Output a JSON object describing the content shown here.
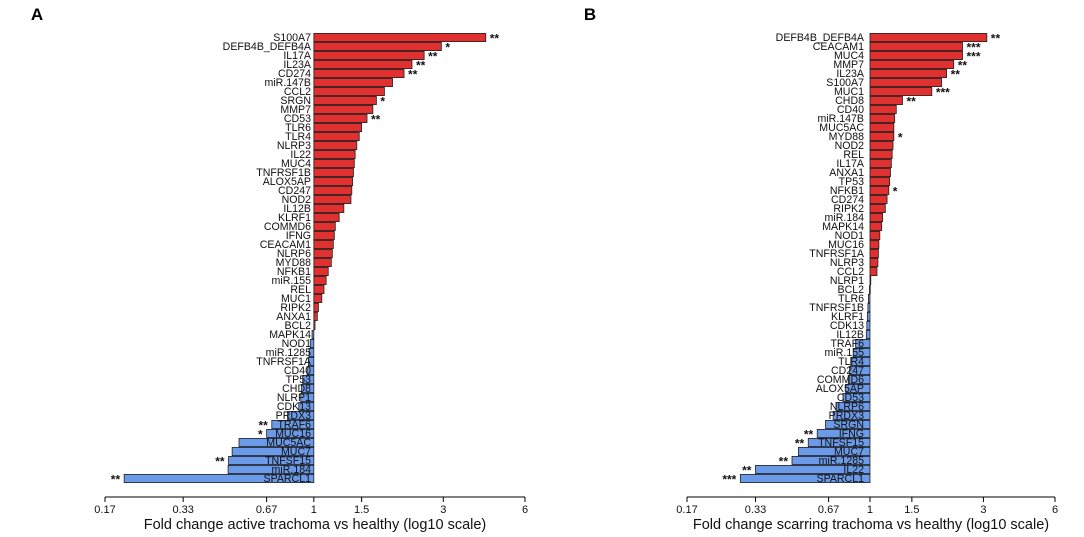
{
  "colors": {
    "up": "#e03030",
    "down": "#6b9ae8",
    "outline": "#222222"
  },
  "chart_data": [
    {
      "type": "bar",
      "orientation": "horizontal",
      "panel_label": "A",
      "xlabel": "Fold change active trachoma vs healthy (log10 scale)",
      "xscale": "log10",
      "xlim": [
        0.17,
        6
      ],
      "xticks": [
        "0.17",
        "0.33",
        "0.67",
        "1",
        "1.5",
        "3",
        "6"
      ],
      "bars": [
        {
          "label": "S100A7",
          "value": 4.3,
          "sig": "**"
        },
        {
          "label": "DEFB4B_DEFB4A",
          "value": 2.95,
          "sig": "*"
        },
        {
          "label": "IL17A",
          "value": 2.55,
          "sig": "**"
        },
        {
          "label": "IL23A",
          "value": 2.3,
          "sig": "**"
        },
        {
          "label": "CD274",
          "value": 2.15,
          "sig": "**"
        },
        {
          "label": "miR.147B",
          "value": 1.95,
          "sig": ""
        },
        {
          "label": "CCL2",
          "value": 1.82,
          "sig": ""
        },
        {
          "label": "SRGN",
          "value": 1.7,
          "sig": "*"
        },
        {
          "label": "MMP7",
          "value": 1.65,
          "sig": ""
        },
        {
          "label": "CD53",
          "value": 1.57,
          "sig": "**"
        },
        {
          "label": "TLR6",
          "value": 1.5,
          "sig": ""
        },
        {
          "label": "TLR4",
          "value": 1.47,
          "sig": ""
        },
        {
          "label": "NLRP3",
          "value": 1.44,
          "sig": ""
        },
        {
          "label": "IL22",
          "value": 1.42,
          "sig": ""
        },
        {
          "label": "MUC4",
          "value": 1.41,
          "sig": ""
        },
        {
          "label": "TNFRSF1B",
          "value": 1.4,
          "sig": ""
        },
        {
          "label": "ALOX5AP",
          "value": 1.39,
          "sig": ""
        },
        {
          "label": "CD247",
          "value": 1.38,
          "sig": ""
        },
        {
          "label": "NOD2",
          "value": 1.37,
          "sig": ""
        },
        {
          "label": "IL12B",
          "value": 1.29,
          "sig": ""
        },
        {
          "label": "KLRF1",
          "value": 1.24,
          "sig": ""
        },
        {
          "label": "COMMD6",
          "value": 1.2,
          "sig": ""
        },
        {
          "label": "IFNG",
          "value": 1.19,
          "sig": ""
        },
        {
          "label": "CEACAM1",
          "value": 1.18,
          "sig": ""
        },
        {
          "label": "NLRP6",
          "value": 1.17,
          "sig": ""
        },
        {
          "label": "MYD88",
          "value": 1.16,
          "sig": ""
        },
        {
          "label": "NFKB1",
          "value": 1.13,
          "sig": ""
        },
        {
          "label": "miR.155",
          "value": 1.11,
          "sig": ""
        },
        {
          "label": "REL",
          "value": 1.09,
          "sig": ""
        },
        {
          "label": "MUC1",
          "value": 1.07,
          "sig": ""
        },
        {
          "label": "RIPK2",
          "value": 1.04,
          "sig": ""
        },
        {
          "label": "ANXA1",
          "value": 1.03,
          "sig": ""
        },
        {
          "label": "BCL2",
          "value": 1.01,
          "sig": ""
        },
        {
          "label": "MAPK14",
          "value": 0.985,
          "sig": ""
        },
        {
          "label": "NOD1",
          "value": 0.97,
          "sig": ""
        },
        {
          "label": "miR.1285",
          "value": 0.96,
          "sig": ""
        },
        {
          "label": "TNFRSF1A",
          "value": 0.955,
          "sig": ""
        },
        {
          "label": "CD40",
          "value": 0.945,
          "sig": ""
        },
        {
          "label": "TP53",
          "value": 0.91,
          "sig": ""
        },
        {
          "label": "CHD8",
          "value": 0.9,
          "sig": ""
        },
        {
          "label": "NLRP1",
          "value": 0.895,
          "sig": ""
        },
        {
          "label": "CDK13",
          "value": 0.88,
          "sig": ""
        },
        {
          "label": "PRDX3",
          "value": 0.8,
          "sig": ""
        },
        {
          "label": "TRAF6",
          "value": 0.7,
          "sig": "**"
        },
        {
          "label": "MUC16",
          "value": 0.67,
          "sig": "*"
        },
        {
          "label": "MUC5AC",
          "value": 0.53,
          "sig": ""
        },
        {
          "label": "MUC7",
          "value": 0.5,
          "sig": ""
        },
        {
          "label": "TNFSF15",
          "value": 0.485,
          "sig": "**"
        },
        {
          "label": "miR.184",
          "value": 0.483,
          "sig": ""
        },
        {
          "label": "SPARCL1",
          "value": 0.2,
          "sig": "**"
        }
      ]
    },
    {
      "type": "bar",
      "orientation": "horizontal",
      "panel_label": "B",
      "xlabel": "Fold change scarring trachoma vs healthy (log10 scale)",
      "xscale": "log10",
      "xlim": [
        0.17,
        6
      ],
      "xticks": [
        "0.17",
        "0.33",
        "0.67",
        "1",
        "1.5",
        "3",
        "6"
      ],
      "bars": [
        {
          "label": "DEFB4B_DEFB4A",
          "value": 3.1,
          "sig": "**"
        },
        {
          "label": "CEACAM1",
          "value": 2.45,
          "sig": "***"
        },
        {
          "label": "MUC4",
          "value": 2.45,
          "sig": "***"
        },
        {
          "label": "MMP7",
          "value": 2.25,
          "sig": "**"
        },
        {
          "label": "IL23A",
          "value": 2.1,
          "sig": "**"
        },
        {
          "label": "S100A7",
          "value": 2.0,
          "sig": ""
        },
        {
          "label": "MUC1",
          "value": 1.82,
          "sig": "***"
        },
        {
          "label": "CHD8",
          "value": 1.37,
          "sig": "**"
        },
        {
          "label": "CD40",
          "value": 1.29,
          "sig": ""
        },
        {
          "label": "miR.147B",
          "value": 1.27,
          "sig": ""
        },
        {
          "label": "MUC5AC",
          "value": 1.26,
          "sig": ""
        },
        {
          "label": "MYD88",
          "value": 1.26,
          "sig": "*"
        },
        {
          "label": "NOD2",
          "value": 1.25,
          "sig": ""
        },
        {
          "label": "REL",
          "value": 1.24,
          "sig": ""
        },
        {
          "label": "IL17A",
          "value": 1.23,
          "sig": ""
        },
        {
          "label": "ANXA1",
          "value": 1.22,
          "sig": ""
        },
        {
          "label": "TP53",
          "value": 1.21,
          "sig": ""
        },
        {
          "label": "NFKB1",
          "value": 1.2,
          "sig": "*"
        },
        {
          "label": "CD274",
          "value": 1.18,
          "sig": ""
        },
        {
          "label": "RIPK2",
          "value": 1.16,
          "sig": ""
        },
        {
          "label": "miR.184",
          "value": 1.13,
          "sig": ""
        },
        {
          "label": "MAPK14",
          "value": 1.12,
          "sig": ""
        },
        {
          "label": "NOD1",
          "value": 1.1,
          "sig": ""
        },
        {
          "label": "MUC16",
          "value": 1.09,
          "sig": ""
        },
        {
          "label": "TNFRSF1A",
          "value": 1.085,
          "sig": ""
        },
        {
          "label": "NLRP3",
          "value": 1.08,
          "sig": ""
        },
        {
          "label": "CCL2",
          "value": 1.07,
          "sig": ""
        },
        {
          "label": "NLRP1",
          "value": 1.005,
          "sig": ""
        },
        {
          "label": "BCL2",
          "value": 0.995,
          "sig": ""
        },
        {
          "label": "TLR6",
          "value": 0.985,
          "sig": ""
        },
        {
          "label": "TNFRSF1B",
          "value": 0.98,
          "sig": ""
        },
        {
          "label": "KLRF1",
          "value": 0.975,
          "sig": ""
        },
        {
          "label": "CDK13",
          "value": 0.97,
          "sig": ""
        },
        {
          "label": "IL12B",
          "value": 0.965,
          "sig": ""
        },
        {
          "label": "TRAF6",
          "value": 0.87,
          "sig": ""
        },
        {
          "label": "miR.155",
          "value": 0.85,
          "sig": ""
        },
        {
          "label": "TLR4",
          "value": 0.83,
          "sig": ""
        },
        {
          "label": "CD247",
          "value": 0.82,
          "sig": ""
        },
        {
          "label": "COMMD6",
          "value": 0.81,
          "sig": ""
        },
        {
          "label": "ALOX5AP",
          "value": 0.79,
          "sig": ""
        },
        {
          "label": "CD53",
          "value": 0.77,
          "sig": ""
        },
        {
          "label": "NLRP6",
          "value": 0.72,
          "sig": ""
        },
        {
          "label": "PRDX3",
          "value": 0.7,
          "sig": ""
        },
        {
          "label": "SRGN",
          "value": 0.65,
          "sig": ""
        },
        {
          "label": "IFNG",
          "value": 0.6,
          "sig": "**"
        },
        {
          "label": "TNFSF15",
          "value": 0.55,
          "sig": "**"
        },
        {
          "label": "MUC7",
          "value": 0.5,
          "sig": ""
        },
        {
          "label": "miR.1285",
          "value": 0.47,
          "sig": "**"
        },
        {
          "label": "IL22",
          "value": 0.33,
          "sig": "**"
        },
        {
          "label": "SPARCL1",
          "value": 0.285,
          "sig": "***"
        }
      ]
    }
  ]
}
